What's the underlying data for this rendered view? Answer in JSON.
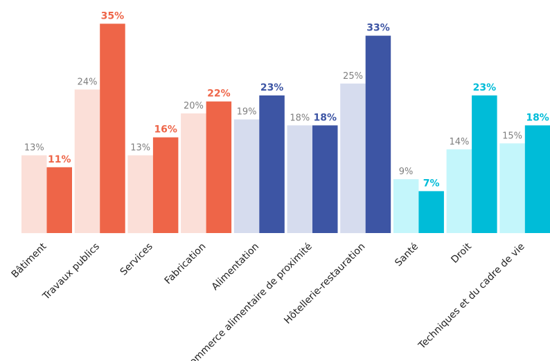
{
  "chart_data": {
    "type": "bar",
    "categories": [
      "Bâtiment",
      "Travaux publics",
      "Services",
      "Fabrication",
      "Alimentation",
      "Commerce alimentaire de proximité",
      "Hôtellerie-restauration",
      "Santé",
      "Droit",
      "Techniques et du cadre de vie"
    ],
    "series": [
      {
        "values": [
          13,
          24,
          13,
          20,
          19,
          18,
          25,
          9,
          14,
          15
        ],
        "labels": [
          "13%",
          "24%",
          "13%",
          "20%",
          "19%",
          "18%",
          "25%",
          "9%",
          "14%",
          "15%"
        ]
      },
      {
        "values": [
          11,
          35,
          16,
          22,
          23,
          18,
          33,
          7,
          23,
          18
        ],
        "labels": [
          "11%",
          "35%",
          "16%",
          "22%",
          "23%",
          "18%",
          "33%",
          "7%",
          "23%",
          "18%"
        ]
      }
    ],
    "groups": [
      {
        "light": "#fbdfd8",
        "dark": "#ee6548",
        "categories": [
          0,
          1,
          2,
          3
        ]
      },
      {
        "light": "#d6dcee",
        "dark": "#3d55a4",
        "categories": [
          4,
          5,
          6
        ]
      },
      {
        "light": "#c4f6fb",
        "dark": "#00bcd8",
        "categories": [
          7,
          8,
          9
        ]
      }
    ],
    "ylim": [
      0,
      37
    ],
    "grid": false,
    "legend": "none"
  }
}
